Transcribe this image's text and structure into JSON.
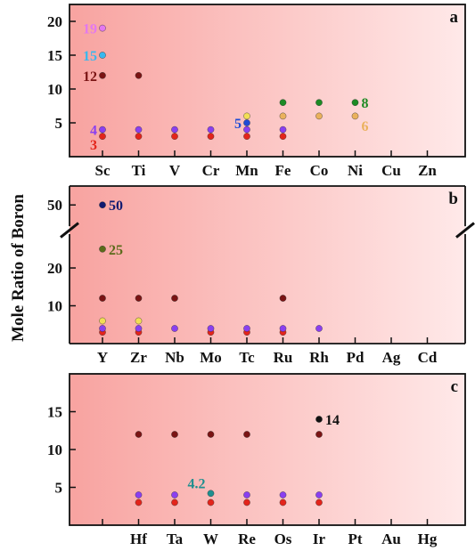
{
  "figure": {
    "ylabel": "Mole Ratio of Boron"
  },
  "colors": {
    "gradient_left": "#f8a3a0",
    "gradient_right": "#ffe9e9",
    "red": "#e3241b",
    "purple": "#8a3ff0",
    "darkred": "#7a1414",
    "yellow": "#f2de55",
    "orange": "#eab15c",
    "green": "#1d8a24",
    "blue": "#1f4bd6",
    "cyan": "#38b8ee",
    "violet": "#e378f0",
    "navy": "#101a70",
    "olive": "#5b6a1a",
    "black": "#111111",
    "teal": "#1f8f8f"
  },
  "chart_data": [
    {
      "type": "scatter",
      "panel": "a",
      "categories": [
        "Sc",
        "Ti",
        "V",
        "Cr",
        "Mn",
        "Fe",
        "Co",
        "Ni",
        "Cu",
        "Zn"
      ],
      "ylim": [
        0,
        22.5
      ],
      "yticks": [
        5,
        10,
        15,
        20
      ],
      "points": [
        {
          "x": "Sc",
          "y": 3,
          "color": "red"
        },
        {
          "x": "Sc",
          "y": 4,
          "color": "purple"
        },
        {
          "x": "Sc",
          "y": 12,
          "color": "darkred"
        },
        {
          "x": "Sc",
          "y": 15,
          "color": "cyan"
        },
        {
          "x": "Sc",
          "y": 19,
          "color": "violet"
        },
        {
          "x": "Ti",
          "y": 3,
          "color": "red"
        },
        {
          "x": "Ti",
          "y": 4,
          "color": "purple"
        },
        {
          "x": "Ti",
          "y": 12,
          "color": "darkred"
        },
        {
          "x": "V",
          "y": 3,
          "color": "red"
        },
        {
          "x": "V",
          "y": 4,
          "color": "purple"
        },
        {
          "x": "Cr",
          "y": 3,
          "color": "red"
        },
        {
          "x": "Cr",
          "y": 4,
          "color": "purple"
        },
        {
          "x": "Mn",
          "y": 3,
          "color": "red"
        },
        {
          "x": "Mn",
          "y": 4,
          "color": "purple"
        },
        {
          "x": "Mn",
          "y": 5,
          "color": "blue"
        },
        {
          "x": "Mn",
          "y": 6,
          "color": "yellow"
        },
        {
          "x": "Fe",
          "y": 3,
          "color": "red"
        },
        {
          "x": "Fe",
          "y": 4,
          "color": "purple"
        },
        {
          "x": "Fe",
          "y": 6,
          "color": "orange"
        },
        {
          "x": "Fe",
          "y": 8,
          "color": "green"
        },
        {
          "x": "Co",
          "y": 6,
          "color": "orange"
        },
        {
          "x": "Co",
          "y": 8,
          "color": "green"
        },
        {
          "x": "Ni",
          "y": 6,
          "color": "orange"
        },
        {
          "x": "Ni",
          "y": 8,
          "color": "green"
        }
      ],
      "annotations": [
        {
          "text": "19",
          "x": "Sc",
          "y": 19,
          "side": "left",
          "color": "violet"
        },
        {
          "text": "15",
          "x": "Sc",
          "y": 15,
          "side": "left",
          "color": "cyan"
        },
        {
          "text": "12",
          "x": "Sc",
          "y": 12,
          "side": "left",
          "color": "darkred"
        },
        {
          "text": "4",
          "x": "Sc",
          "y": 4,
          "side": "left",
          "color": "purple"
        },
        {
          "text": "3",
          "x": "Sc",
          "y": 3,
          "side": "left",
          "color": "red",
          "dy": 1.0
        },
        {
          "text": "5",
          "x": "Mn",
          "y": 5,
          "side": "left",
          "color": "blue"
        },
        {
          "text": "8",
          "x": "Ni",
          "y": 8,
          "side": "right",
          "color": "green"
        },
        {
          "text": "6",
          "x": "Ni",
          "y": 6,
          "side": "right",
          "color": "orange",
          "dy": 1.2
        }
      ]
    },
    {
      "type": "scatter",
      "panel": "b",
      "categories": [
        "Y",
        "Zr",
        "Nb",
        "Mo",
        "Tc",
        "Ru",
        "Rh",
        "Pd",
        "Ag",
        "Cd"
      ],
      "ylim": [
        0,
        55
      ],
      "yticks": [
        10,
        20,
        50
      ],
      "axis_break": [
        30,
        45
      ],
      "points": [
        {
          "x": "Y",
          "y": 3,
          "color": "red"
        },
        {
          "x": "Y",
          "y": 4,
          "color": "purple"
        },
        {
          "x": "Y",
          "y": 6,
          "color": "yellow"
        },
        {
          "x": "Y",
          "y": 12,
          "color": "darkred"
        },
        {
          "x": "Y",
          "y": 25,
          "color": "olive"
        },
        {
          "x": "Y",
          "y": 50,
          "color": "navy"
        },
        {
          "x": "Zr",
          "y": 3,
          "color": "red"
        },
        {
          "x": "Zr",
          "y": 4,
          "color": "purple"
        },
        {
          "x": "Zr",
          "y": 6,
          "color": "yellow"
        },
        {
          "x": "Zr",
          "y": 12,
          "color": "darkred"
        },
        {
          "x": "Nb",
          "y": 4,
          "color": "purple"
        },
        {
          "x": "Nb",
          "y": 12,
          "color": "darkred"
        },
        {
          "x": "Mo",
          "y": 3,
          "color": "red"
        },
        {
          "x": "Mo",
          "y": 4,
          "color": "purple"
        },
        {
          "x": "Tc",
          "y": 3,
          "color": "red"
        },
        {
          "x": "Tc",
          "y": 4,
          "color": "purple"
        },
        {
          "x": "Ru",
          "y": 3,
          "color": "red"
        },
        {
          "x": "Ru",
          "y": 4,
          "color": "purple"
        },
        {
          "x": "Ru",
          "y": 12,
          "color": "darkred"
        },
        {
          "x": "Rh",
          "y": 4,
          "color": "purple"
        }
      ],
      "annotations": [
        {
          "text": "50",
          "x": "Y",
          "y": 50,
          "side": "right",
          "color": "navy"
        },
        {
          "text": "25",
          "x": "Y",
          "y": 25,
          "side": "right",
          "color": "olive"
        }
      ]
    },
    {
      "type": "scatter",
      "panel": "c",
      "categories": [
        "",
        "Hf",
        "Ta",
        "W",
        "Re",
        "Os",
        "Ir",
        "Pt",
        "Au",
        "Hg"
      ],
      "ylim": [
        0,
        20
      ],
      "yticks": [
        5,
        10,
        15
      ],
      "points": [
        {
          "x": "Hf",
          "y": 3,
          "color": "red"
        },
        {
          "x": "Hf",
          "y": 4,
          "color": "purple"
        },
        {
          "x": "Hf",
          "y": 12,
          "color": "darkred"
        },
        {
          "x": "Ta",
          "y": 3,
          "color": "red"
        },
        {
          "x": "Ta",
          "y": 4,
          "color": "purple"
        },
        {
          "x": "Ta",
          "y": 12,
          "color": "darkred"
        },
        {
          "x": "W",
          "y": 3,
          "color": "red"
        },
        {
          "x": "W",
          "y": 4.2,
          "color": "teal"
        },
        {
          "x": "W",
          "y": 12,
          "color": "darkred"
        },
        {
          "x": "Re",
          "y": 3,
          "color": "red"
        },
        {
          "x": "Re",
          "y": 4,
          "color": "purple"
        },
        {
          "x": "Re",
          "y": 12,
          "color": "darkred"
        },
        {
          "x": "Os",
          "y": 3,
          "color": "red"
        },
        {
          "x": "Os",
          "y": 4,
          "color": "purple"
        },
        {
          "x": "Ir",
          "y": 3,
          "color": "red"
        },
        {
          "x": "Ir",
          "y": 4,
          "color": "purple"
        },
        {
          "x": "Ir",
          "y": 12,
          "color": "darkred"
        },
        {
          "x": "Ir",
          "y": 14,
          "color": "black"
        }
      ],
      "annotations": [
        {
          "text": "4.2",
          "x": "W",
          "y": 4.2,
          "side": "left",
          "color": "teal",
          "dy": -1.3
        },
        {
          "text": "14",
          "x": "Ir",
          "y": 14,
          "side": "right",
          "color": "black"
        }
      ]
    }
  ]
}
